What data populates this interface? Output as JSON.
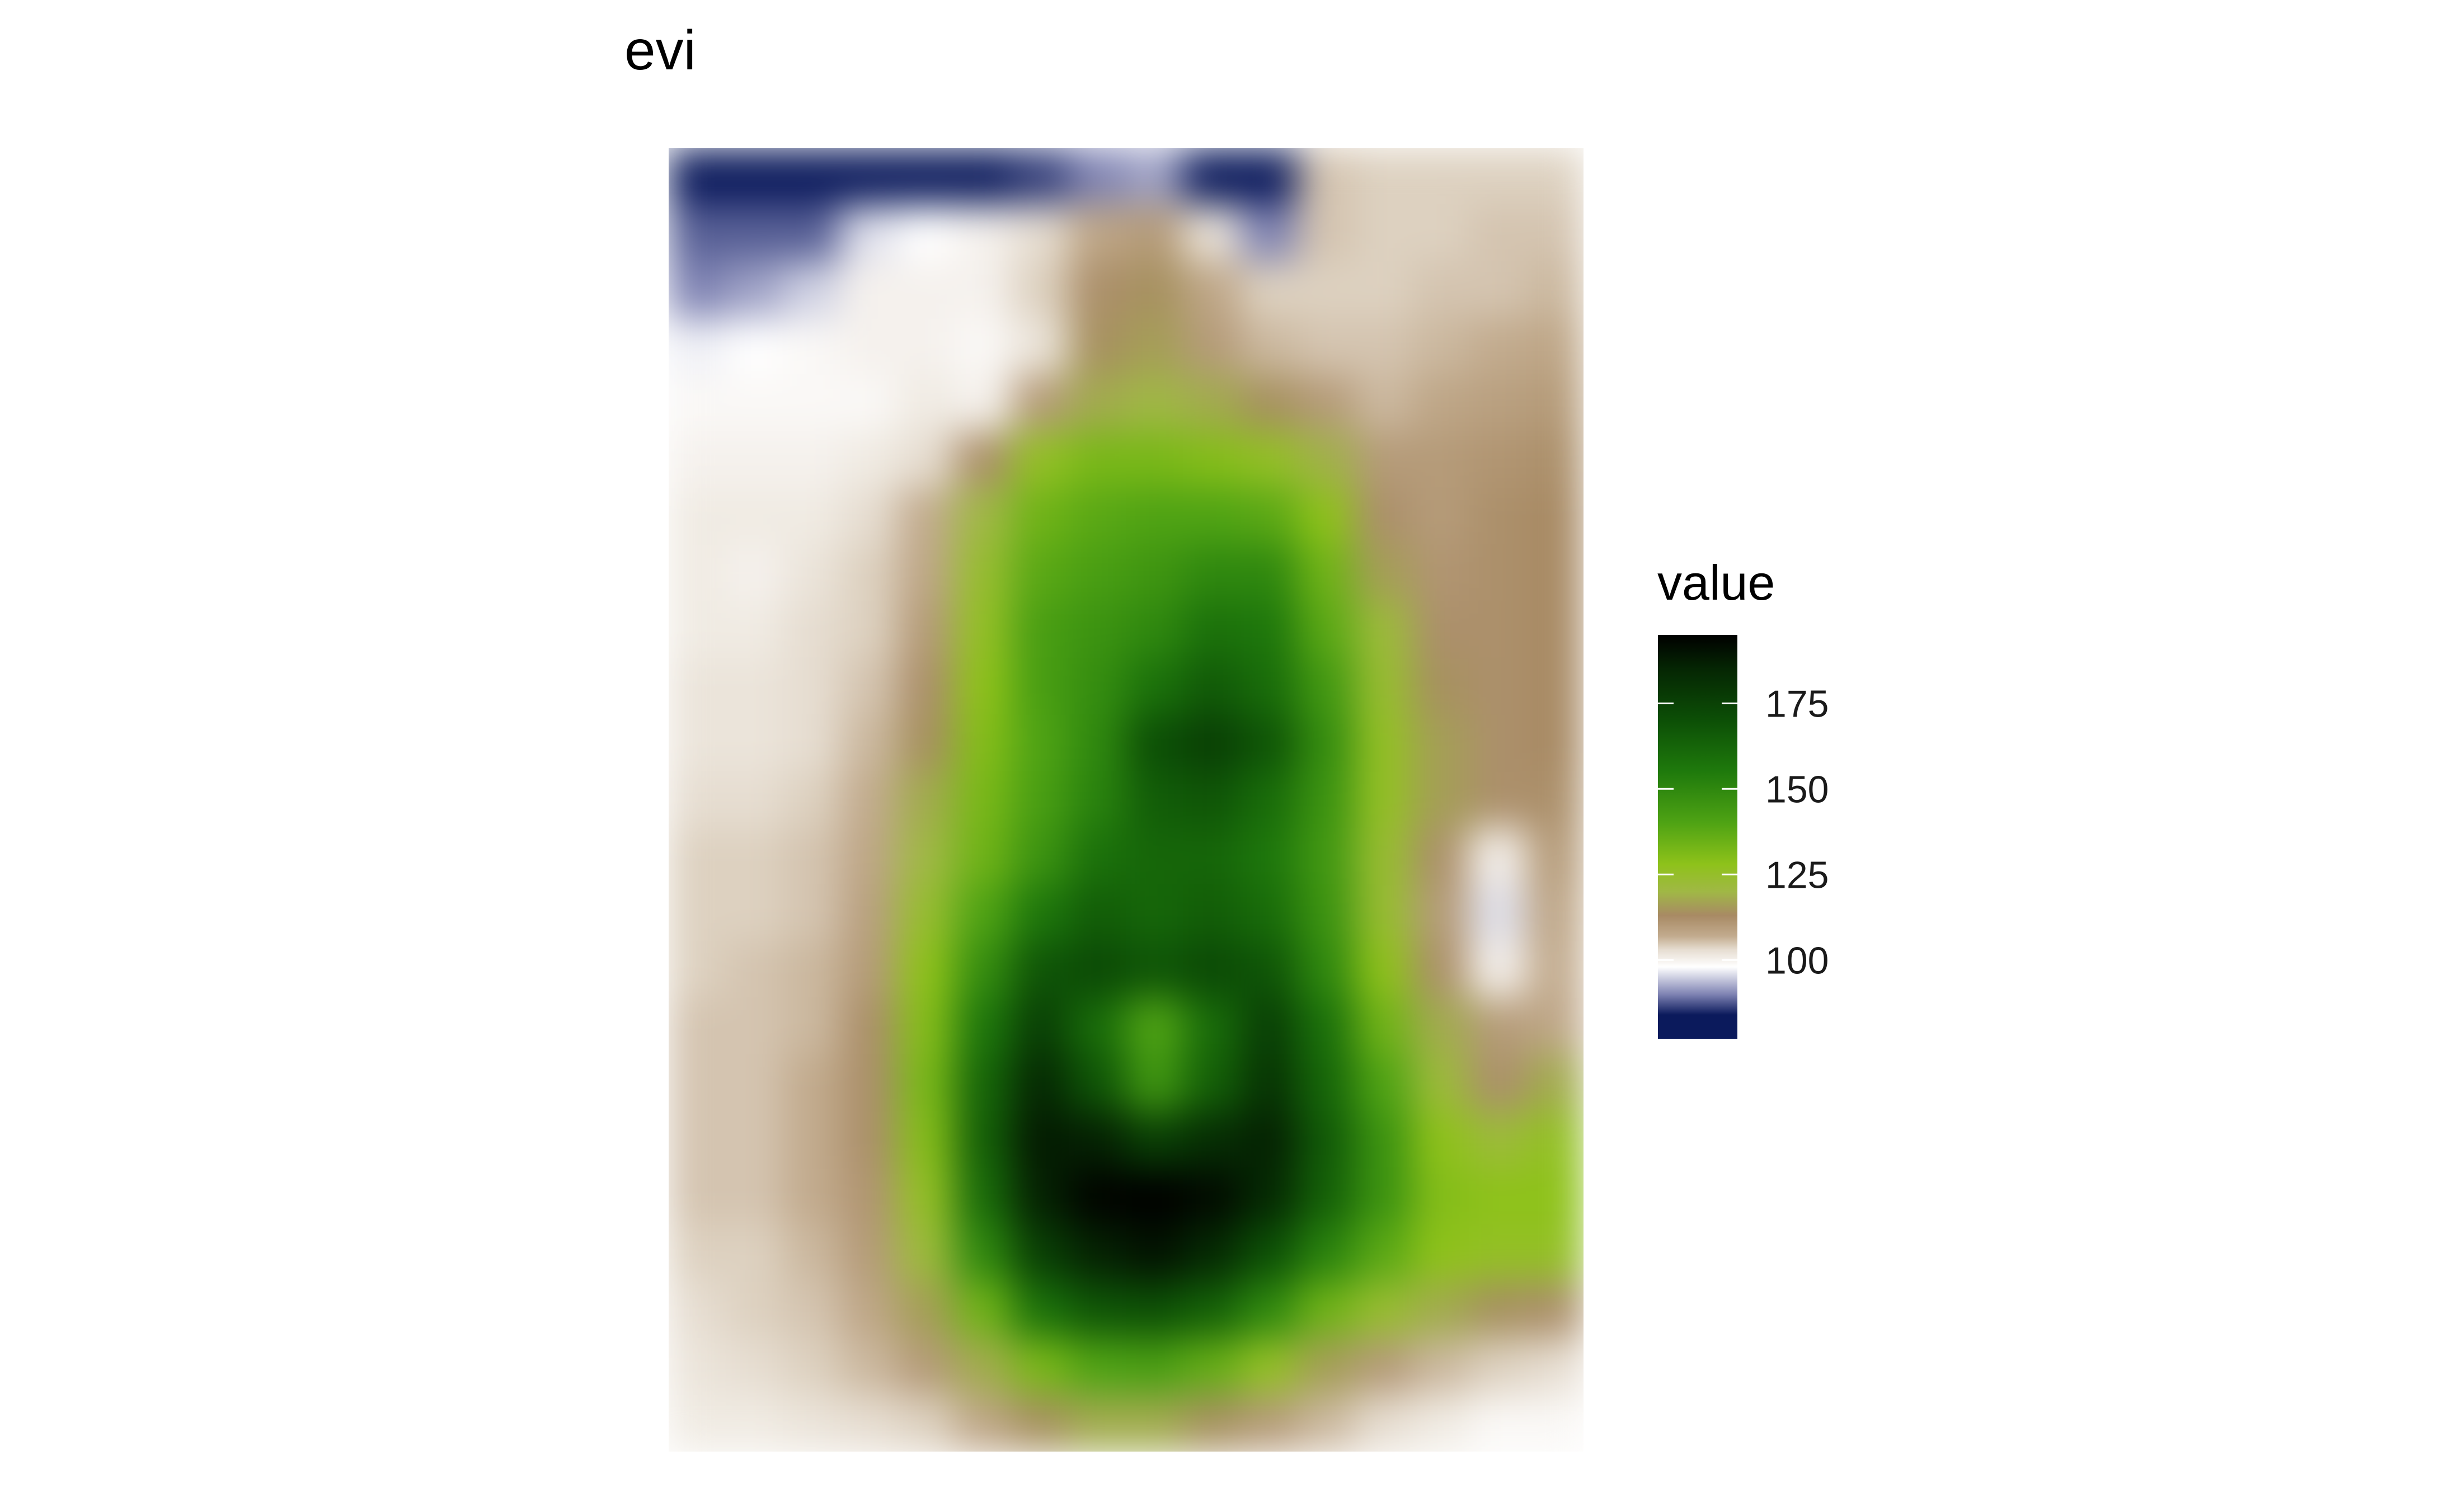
{
  "chart_data": {
    "type": "heatmap",
    "title": "evi",
    "xlabel": "",
    "ylabel": "",
    "legend": {
      "title": "value",
      "placement": "right",
      "ticks": [
        175,
        150,
        125,
        100
      ],
      "range": [
        77,
        195
      ]
    },
    "colormap": [
      {
        "value": 77,
        "color": "#0b1a5c"
      },
      {
        "value": 84,
        "color": "#0b1a5c"
      },
      {
        "value": 90,
        "color": "#7f83b3"
      },
      {
        "value": 98,
        "color": "#ffffff"
      },
      {
        "value": 103,
        "color": "#e6ddd1"
      },
      {
        "value": 107,
        "color": "#c2ab8e"
      },
      {
        "value": 113,
        "color": "#a88a64"
      },
      {
        "value": 120,
        "color": "#a0b845"
      },
      {
        "value": 128,
        "color": "#8ec21a"
      },
      {
        "value": 140,
        "color": "#4fa314"
      },
      {
        "value": 155,
        "color": "#1f7a0c"
      },
      {
        "value": 170,
        "color": "#0c4f06"
      },
      {
        "value": 185,
        "color": "#052603"
      },
      {
        "value": 195,
        "color": "#000000"
      }
    ],
    "raster": {
      "rows": 23,
      "cols": 16,
      "values": [
        [
          84,
          84,
          84,
          84,
          84,
          84,
          86,
          90,
          92,
          84,
          84,
          105,
          104,
          104,
          104,
          104
        ],
        [
          88,
          88,
          88,
          96,
          98,
          100,
          103,
          108,
          110,
          102,
          90,
          105,
          104,
          104,
          105,
          105
        ],
        [
          90,
          92,
          95,
          100,
          100,
          100,
          104,
          112,
          114,
          108,
          104,
          104,
          104,
          105,
          105,
          106
        ],
        [
          97,
          98,
          99,
          100,
          100,
          99,
          102,
          114,
          116,
          110,
          106,
          105,
          105,
          106,
          107,
          108
        ],
        [
          99,
          99,
          99,
          99,
          101,
          100,
          110,
          118,
          120,
          118,
          114,
          110,
          106,
          108,
          109,
          110
        ],
        [
          100,
          100,
          100,
          101,
          103,
          112,
          126,
          132,
          132,
          130,
          126,
          119,
          110,
          110,
          111,
          112
        ],
        [
          101,
          101,
          101,
          103,
          107,
          120,
          134,
          138,
          140,
          140,
          138,
          128,
          112,
          110,
          112,
          113
        ],
        [
          101,
          100,
          102,
          104,
          108,
          124,
          138,
          142,
          145,
          150,
          150,
          134,
          116,
          111,
          112,
          113
        ],
        [
          101,
          101,
          103,
          104,
          110,
          126,
          142,
          146,
          150,
          158,
          156,
          138,
          122,
          112,
          112,
          113
        ],
        [
          102,
          102,
          103,
          105,
          112,
          128,
          142,
          148,
          158,
          166,
          160,
          144,
          124,
          114,
          112,
          113
        ],
        [
          102,
          102,
          103,
          106,
          114,
          130,
          140,
          150,
          170,
          176,
          168,
          148,
          126,
          116,
          112,
          113
        ],
        [
          103,
          103,
          104,
          107,
          118,
          132,
          142,
          152,
          165,
          168,
          160,
          146,
          126,
          116,
          112,
          112
        ],
        [
          104,
          104,
          105,
          108,
          120,
          134,
          146,
          158,
          162,
          162,
          156,
          144,
          124,
          112,
          100,
          110
        ],
        [
          104,
          104,
          105,
          109,
          124,
          140,
          156,
          165,
          162,
          165,
          160,
          146,
          124,
          110,
          96,
          108
        ],
        [
          104,
          105,
          106,
          110,
          128,
          148,
          168,
          172,
          168,
          172,
          168,
          150,
          128,
          112,
          100,
          107
        ],
        [
          105,
          105,
          106,
          112,
          130,
          156,
          176,
          160,
          140,
          160,
          176,
          158,
          134,
          118,
          110,
          108
        ],
        [
          105,
          105,
          107,
          112,
          132,
          162,
          184,
          168,
          145,
          164,
          180,
          162,
          140,
          122,
          112,
          118
        ],
        [
          105,
          105,
          107,
          112,
          130,
          164,
          188,
          186,
          176,
          182,
          186,
          166,
          146,
          128,
          122,
          126
        ],
        [
          105,
          105,
          107,
          111,
          126,
          160,
          186,
          194,
          195,
          192,
          184,
          164,
          146,
          130,
          128,
          128
        ],
        [
          104,
          104,
          106,
          110,
          122,
          150,
          176,
          186,
          190,
          184,
          170,
          152,
          138,
          128,
          126,
          126
        ],
        [
          103,
          104,
          105,
          108,
          116,
          134,
          158,
          168,
          170,
          164,
          150,
          134,
          124,
          118,
          114,
          112
        ],
        [
          102,
          103,
          104,
          106,
          110,
          118,
          132,
          140,
          142,
          136,
          126,
          116,
          110,
          106,
          104,
          103
        ],
        [
          101,
          101,
          102,
          103,
          104,
          108,
          114,
          118,
          118,
          114,
          110,
          106,
          103,
          101,
          99,
          99
        ]
      ]
    }
  }
}
